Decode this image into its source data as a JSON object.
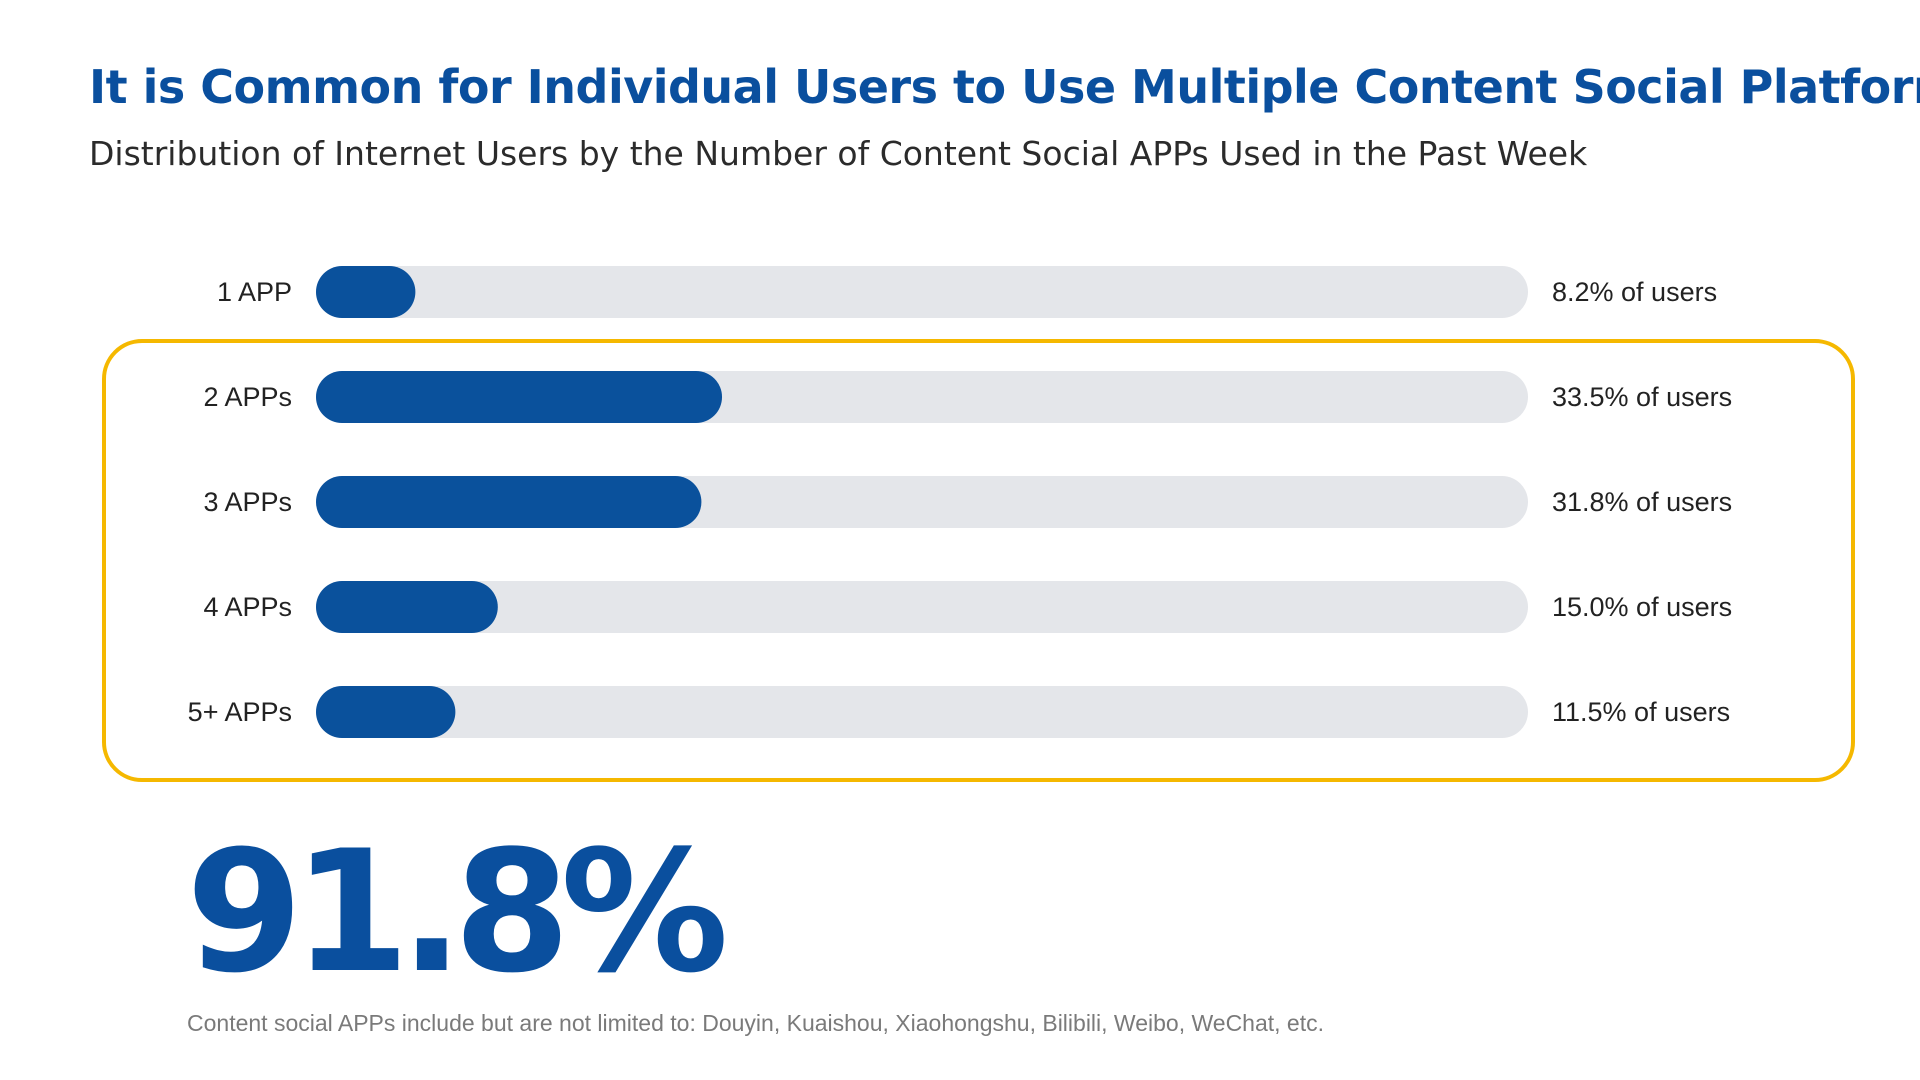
{
  "title": "It is Common for Individual Users to Use Multiple Content Social Platforms",
  "subtitle": "Distribution of Internet Users by the Number of Content Social APPs Used in the Past Week",
  "highlight": {
    "stat": "91.8%",
    "color": "#f5b800"
  },
  "footnote": "Content social APPs include but are not limited to: Douyin, Kuaishou, Xiaohongshu, Bilibili, Weibo, WeChat, etc.",
  "colors": {
    "bar": "#0a519c",
    "track": "#e4e6ea"
  },
  "chart_data": {
    "type": "bar",
    "orientation": "horizontal",
    "categories": [
      "1 APP",
      "2 APPs",
      "3 APPs",
      "4 APPs",
      "5+ APPs"
    ],
    "values": [
      8.2,
      33.5,
      31.8,
      15.0,
      11.5
    ],
    "value_labels": [
      "8.2% of users",
      "33.5% of users",
      "31.8% of users",
      "15.0% of users",
      "11.5% of users"
    ],
    "xlim": [
      0,
      100
    ],
    "grid": false,
    "highlighted_categories": [
      "2 APPs",
      "3 APPs",
      "4 APPs",
      "5+ APPs"
    ]
  }
}
